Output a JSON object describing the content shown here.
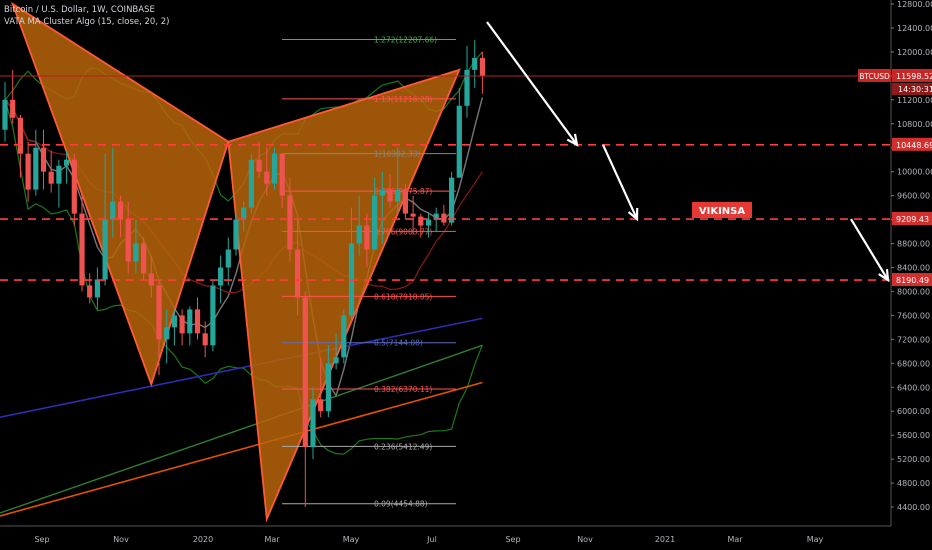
{
  "header": {
    "symbol_line": "Bitcoin / U.S. Dollar, 1W, COINBASE",
    "indicator_line": "VATA MA Cluster Algo (15, close, 20, 2)"
  },
  "annotation": {
    "label": "VIKINSA",
    "color": "#e53935"
  },
  "colors": {
    "background": "#000000",
    "up": "#26a69a",
    "down": "#ef5350",
    "pattern_fill": "#b8650a",
    "pattern_edge": "#ff5a36",
    "level_line": "#ff3d3d",
    "arrow": "#ffffff"
  },
  "chart_data": {
    "type": "candlestick",
    "interval": "1W",
    "y_axis": {
      "min": 4200,
      "max": 12800,
      "ticks": [
        12800,
        12400,
        12000,
        11600,
        11200,
        10800,
        10400,
        10000,
        9600,
        9200,
        8800,
        8400,
        8000,
        7600,
        7200,
        6800,
        6400,
        6000,
        5600,
        5200,
        4800,
        4400
      ]
    },
    "x_axis": {
      "tick_labels": [
        "Sep",
        "Nov",
        "2020",
        "Mar",
        "May",
        "Jul",
        "Sep",
        "Nov",
        "2021",
        "Mar",
        "May"
      ]
    },
    "candles": [
      [
        10700,
        11500,
        10500,
        11200
      ],
      [
        11200,
        11700,
        10800,
        10900
      ],
      [
        10900,
        10950,
        9900,
        10300
      ],
      [
        10300,
        10500,
        9500,
        9700
      ],
      [
        9700,
        10700,
        9600,
        10400
      ],
      [
        10400,
        10700,
        9700,
        10000
      ],
      [
        10000,
        10350,
        9650,
        9800
      ],
      [
        9800,
        10200,
        9400,
        10100
      ],
      [
        10100,
        10350,
        9800,
        10200
      ],
      [
        10200,
        10300,
        9100,
        9300
      ],
      [
        9300,
        9600,
        8000,
        8100
      ],
      [
        8100,
        8300,
        7800,
        7900
      ],
      [
        7900,
        8400,
        7700,
        8200
      ],
      [
        8200,
        10300,
        8100,
        9200
      ],
      [
        9200,
        10400,
        8900,
        9500
      ],
      [
        9500,
        9600,
        8900,
        9200
      ],
      [
        9200,
        9500,
        8300,
        8500
      ],
      [
        8500,
        9200,
        8300,
        8800
      ],
      [
        8800,
        8900,
        8200,
        8300
      ],
      [
        8300,
        8600,
        7900,
        8100
      ],
      [
        8100,
        8200,
        6600,
        7200
      ],
      [
        7200,
        7700,
        6800,
        7400
      ],
      [
        7400,
        7700,
        7100,
        7600
      ],
      [
        7600,
        7700,
        7100,
        7300
      ],
      [
        7300,
        7750,
        7100,
        7700
      ],
      [
        7700,
        7900,
        7200,
        7300
      ],
      [
        7300,
        7500,
        6900,
        7100
      ],
      [
        7100,
        8200,
        7000,
        8100
      ],
      [
        8100,
        8600,
        7800,
        8400
      ],
      [
        8400,
        8900,
        8100,
        8700
      ],
      [
        8700,
        9300,
        8600,
        9200
      ],
      [
        9200,
        9500,
        9000,
        9400
      ],
      [
        9400,
        10300,
        9300,
        10200
      ],
      [
        10200,
        10500,
        9900,
        10000
      ],
      [
        10000,
        10400,
        9600,
        9800
      ],
      [
        9800,
        10400,
        9700,
        10300
      ],
      [
        10300,
        10300,
        9400,
        9600
      ],
      [
        9600,
        9900,
        8500,
        8700
      ],
      [
        8700,
        9200,
        7600,
        7900
      ],
      [
        7900,
        8000,
        4400,
        5400
      ],
      [
        5400,
        6400,
        5200,
        6200
      ],
      [
        6200,
        6900,
        5900,
        6000
      ],
      [
        6000,
        7100,
        5900,
        6800
      ],
      [
        6800,
        7300,
        6700,
        6900
      ],
      [
        6900,
        7700,
        6800,
        7600
      ],
      [
        7600,
        9400,
        7500,
        8800
      ],
      [
        8800,
        9600,
        8600,
        9100
      ],
      [
        9100,
        9300,
        8400,
        8700
      ],
      [
        8700,
        9900,
        8700,
        9600
      ],
      [
        9600,
        10000,
        8800,
        9700
      ],
      [
        9700,
        9950,
        9400,
        9500
      ],
      [
        9500,
        10400,
        9300,
        9700
      ],
      [
        9700,
        9800,
        9200,
        9300
      ],
      [
        9300,
        9600,
        8950,
        9250
      ],
      [
        9250,
        9300,
        8900,
        9100
      ],
      [
        9100,
        9300,
        8900,
        9200
      ],
      [
        9200,
        9400,
        9000,
        9300
      ],
      [
        9300,
        9450,
        9100,
        9150
      ],
      [
        9150,
        10000,
        9100,
        9900
      ],
      [
        9900,
        11400,
        9900,
        11100
      ],
      [
        11100,
        12100,
        10900,
        11700
      ],
      [
        11700,
        12200,
        11400,
        11900
      ],
      [
        11900,
        12000,
        11300,
        11600
      ]
    ],
    "fib_levels": [
      {
        "label": "1.272(12207.66)",
        "value": 12207.66,
        "color": "#4caf50"
      },
      {
        "label": "1.13(11216.28)",
        "value": 11216.28,
        "color": "#ff5252"
      },
      {
        "label": "1(10302.33)",
        "value": 10302.33,
        "color": "#888888"
      },
      {
        "label": "0.886(9675.87)",
        "value": 9675.87,
        "color": "#ff5252"
      },
      {
        "label": "0.786(9003.77)",
        "value": 9003.77,
        "color": "#ff5252"
      },
      {
        "label": "0.618(7918.05)",
        "value": 7918.05,
        "color": "#ff5252"
      },
      {
        "label": "0.5(7144.08)",
        "value": 7144.08,
        "color": "#5c6bc0"
      },
      {
        "label": "0.382(6370.11)",
        "value": 6370.11,
        "color": "#ff5252"
      },
      {
        "label": "0.236(5412.49)",
        "value": 5412.49,
        "color": "#aaaaaa"
      },
      {
        "label": "0.09(4454.88)",
        "value": 4454.88,
        "color": "#aaaaaa"
      }
    ],
    "levels": [
      {
        "value": 10448.69,
        "label": "10448.69"
      },
      {
        "value": 9209.43,
        "label": "9209.43"
      },
      {
        "value": 8190.49,
        "label": "8190.49"
      }
    ],
    "current_price": {
      "label": "BTCUSD",
      "value": "11598.52",
      "countdown": "14:30:31"
    }
  }
}
